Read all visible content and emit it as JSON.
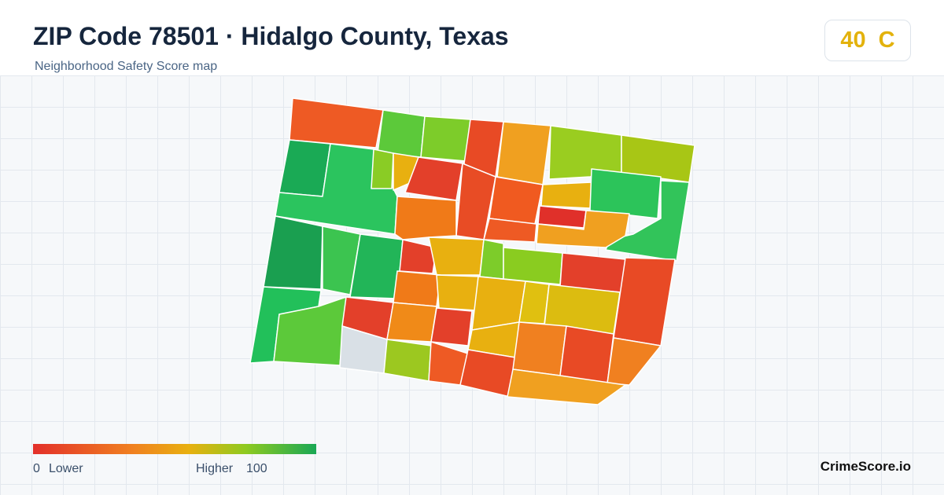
{
  "header": {
    "title": "ZIP Code 78501 · Hidalgo County, Texas",
    "subtitle": "Neighborhood Safety Score map",
    "score": 40,
    "grade": "C"
  },
  "legend": {
    "min": 0,
    "min_label": "Lower",
    "max_label": "Higher",
    "max": 100
  },
  "footer": {
    "brand": "CrimeScore.io"
  }
}
